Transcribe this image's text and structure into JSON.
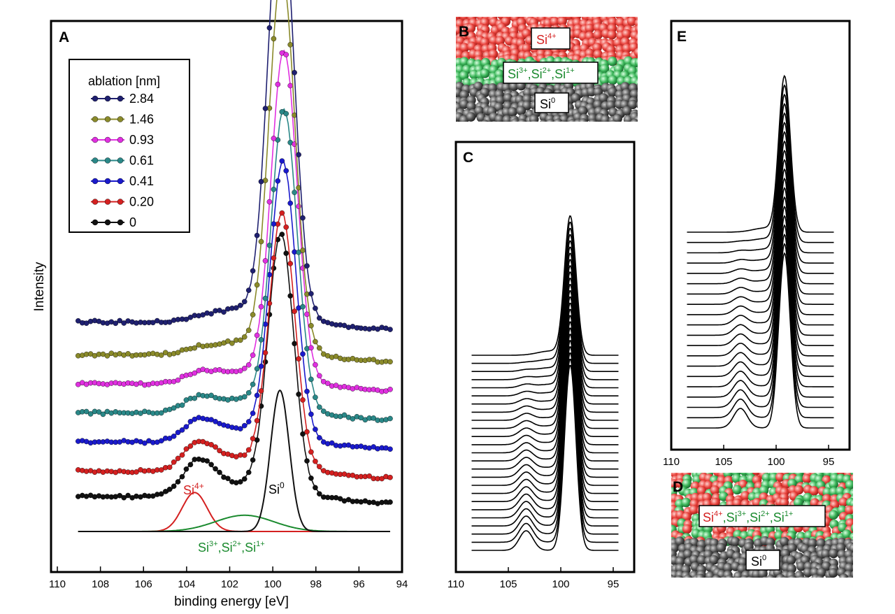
{
  "colors": {
    "frame": "#000000",
    "si4": "#d42020",
    "si_mid": "#1a8a2e",
    "si0": "#3a3a3a",
    "sphere_red": "#e8423c",
    "sphere_green": "#3cb65a",
    "sphere_gray": "#555555"
  },
  "panels": {
    "A": {
      "letter": "A",
      "ylabel": "Intensity",
      "xlabel": "binding energy [eV]",
      "xticks": [
        "110",
        "108",
        "106",
        "104",
        "102",
        "100",
        "98",
        "96",
        "94"
      ],
      "legend": {
        "title": "ablation [nm]",
        "entries": [
          "2.84",
          "1.46",
          "0.93",
          "0.61",
          "0.41",
          "0.20",
          "0"
        ]
      },
      "ann_si4": "Si",
      "ann_si4_sup": "4+",
      "ann_si0": "Si",
      "ann_si0_sup": "0",
      "ann_mid": [
        {
          "base": "Si",
          "sup": "3+"
        },
        {
          "base": ",Si",
          "sup": "2+"
        },
        {
          "base": ",Si",
          "sup": "1+"
        }
      ]
    },
    "B": {
      "letter": "B",
      "top": {
        "base": "Si",
        "sup": "4+"
      },
      "mid": [
        {
          "base": "Si",
          "sup": "3+"
        },
        {
          "base": ",Si",
          "sup": "2+"
        },
        {
          "base": ",Si",
          "sup": "1+"
        }
      ],
      "bottom": {
        "base": "Si",
        "sup": "0"
      }
    },
    "C": {
      "letter": "C",
      "xticks": [
        "110",
        "105",
        "100",
        "95"
      ]
    },
    "D": {
      "letter": "D",
      "top": [
        {
          "base": "Si",
          "sup": "4+"
        },
        {
          "base": ",Si",
          "sup": "3+"
        },
        {
          "base": ",Si",
          "sup": "2+"
        },
        {
          "base": ",Si",
          "sup": "1+"
        }
      ],
      "bottom": {
        "base": "Si",
        "sup": "0"
      }
    },
    "E": {
      "letter": "E",
      "xticks": [
        "110",
        "105",
        "100",
        "95"
      ]
    }
  },
  "chart_data": [
    {
      "panel": "A",
      "type": "line",
      "xlabel": "binding energy [eV]",
      "ylabel": "Intensity",
      "xlim": [
        110,
        94
      ],
      "x_reversed": true,
      "legend_title": "ablation [nm]",
      "legend_placement": "top-left",
      "markers": true,
      "series": [
        {
          "name": "2.84",
          "color": "#1f2070",
          "baseline": 0.96,
          "shoulder": 0.04,
          "si0_peak": 99.25,
          "peak_height": 2.44
        },
        {
          "name": "1.46",
          "color": "#8a8a2a",
          "baseline": 0.78,
          "shoulder": 0.08,
          "si0_peak": 99.2,
          "peak_height": 2.17
        },
        {
          "name": "0.93",
          "color": "#e030e0",
          "baseline": 0.62,
          "shoulder": 0.16,
          "si0_peak": 99.1,
          "peak_height": 1.89
        },
        {
          "name": "0.61",
          "color": "#2a8888",
          "baseline": 0.46,
          "shoulder": 0.26,
          "si0_peak": 99.1,
          "peak_height": 1.72
        },
        {
          "name": "0.41",
          "color": "#1a1acc",
          "baseline": 0.3,
          "shoulder": 0.38,
          "si0_peak": 99.15,
          "peak_height": 1.58
        },
        {
          "name": "0.20",
          "color": "#d42020",
          "baseline": 0.14,
          "shoulder": 0.52,
          "si0_peak": 99.2,
          "peak_height": 1.45
        },
        {
          "name": "0",
          "color": "#111111",
          "baseline": 0.0,
          "shoulder": 0.68,
          "si0_peak": 99.25,
          "peak_height": 1.48
        }
      ],
      "fit_components": [
        {
          "label": "Si4+",
          "center": 103.4,
          "height": 0.48,
          "width": 0.6,
          "color": "#d42020"
        },
        {
          "label": "Si3+,Si2+,Si1+",
          "center": 101.0,
          "height": 0.2,
          "width": 1.4,
          "color": "#1a8a2e"
        },
        {
          "label": "Si0",
          "center": 99.3,
          "height": 1.74,
          "width": 0.45,
          "color": "#111111"
        }
      ]
    },
    {
      "panel": "C",
      "type": "line",
      "xlim": [
        110,
        93
      ],
      "x_reversed": true,
      "curve_count": 25,
      "peak_center": 99.1,
      "shoulder_center": 103.3
    },
    {
      "panel": "E",
      "type": "line",
      "xlim": [
        110,
        93
      ],
      "x_reversed": true,
      "curve_count": 20,
      "peak_center": 99.2,
      "shoulder_center": 103.4
    }
  ]
}
